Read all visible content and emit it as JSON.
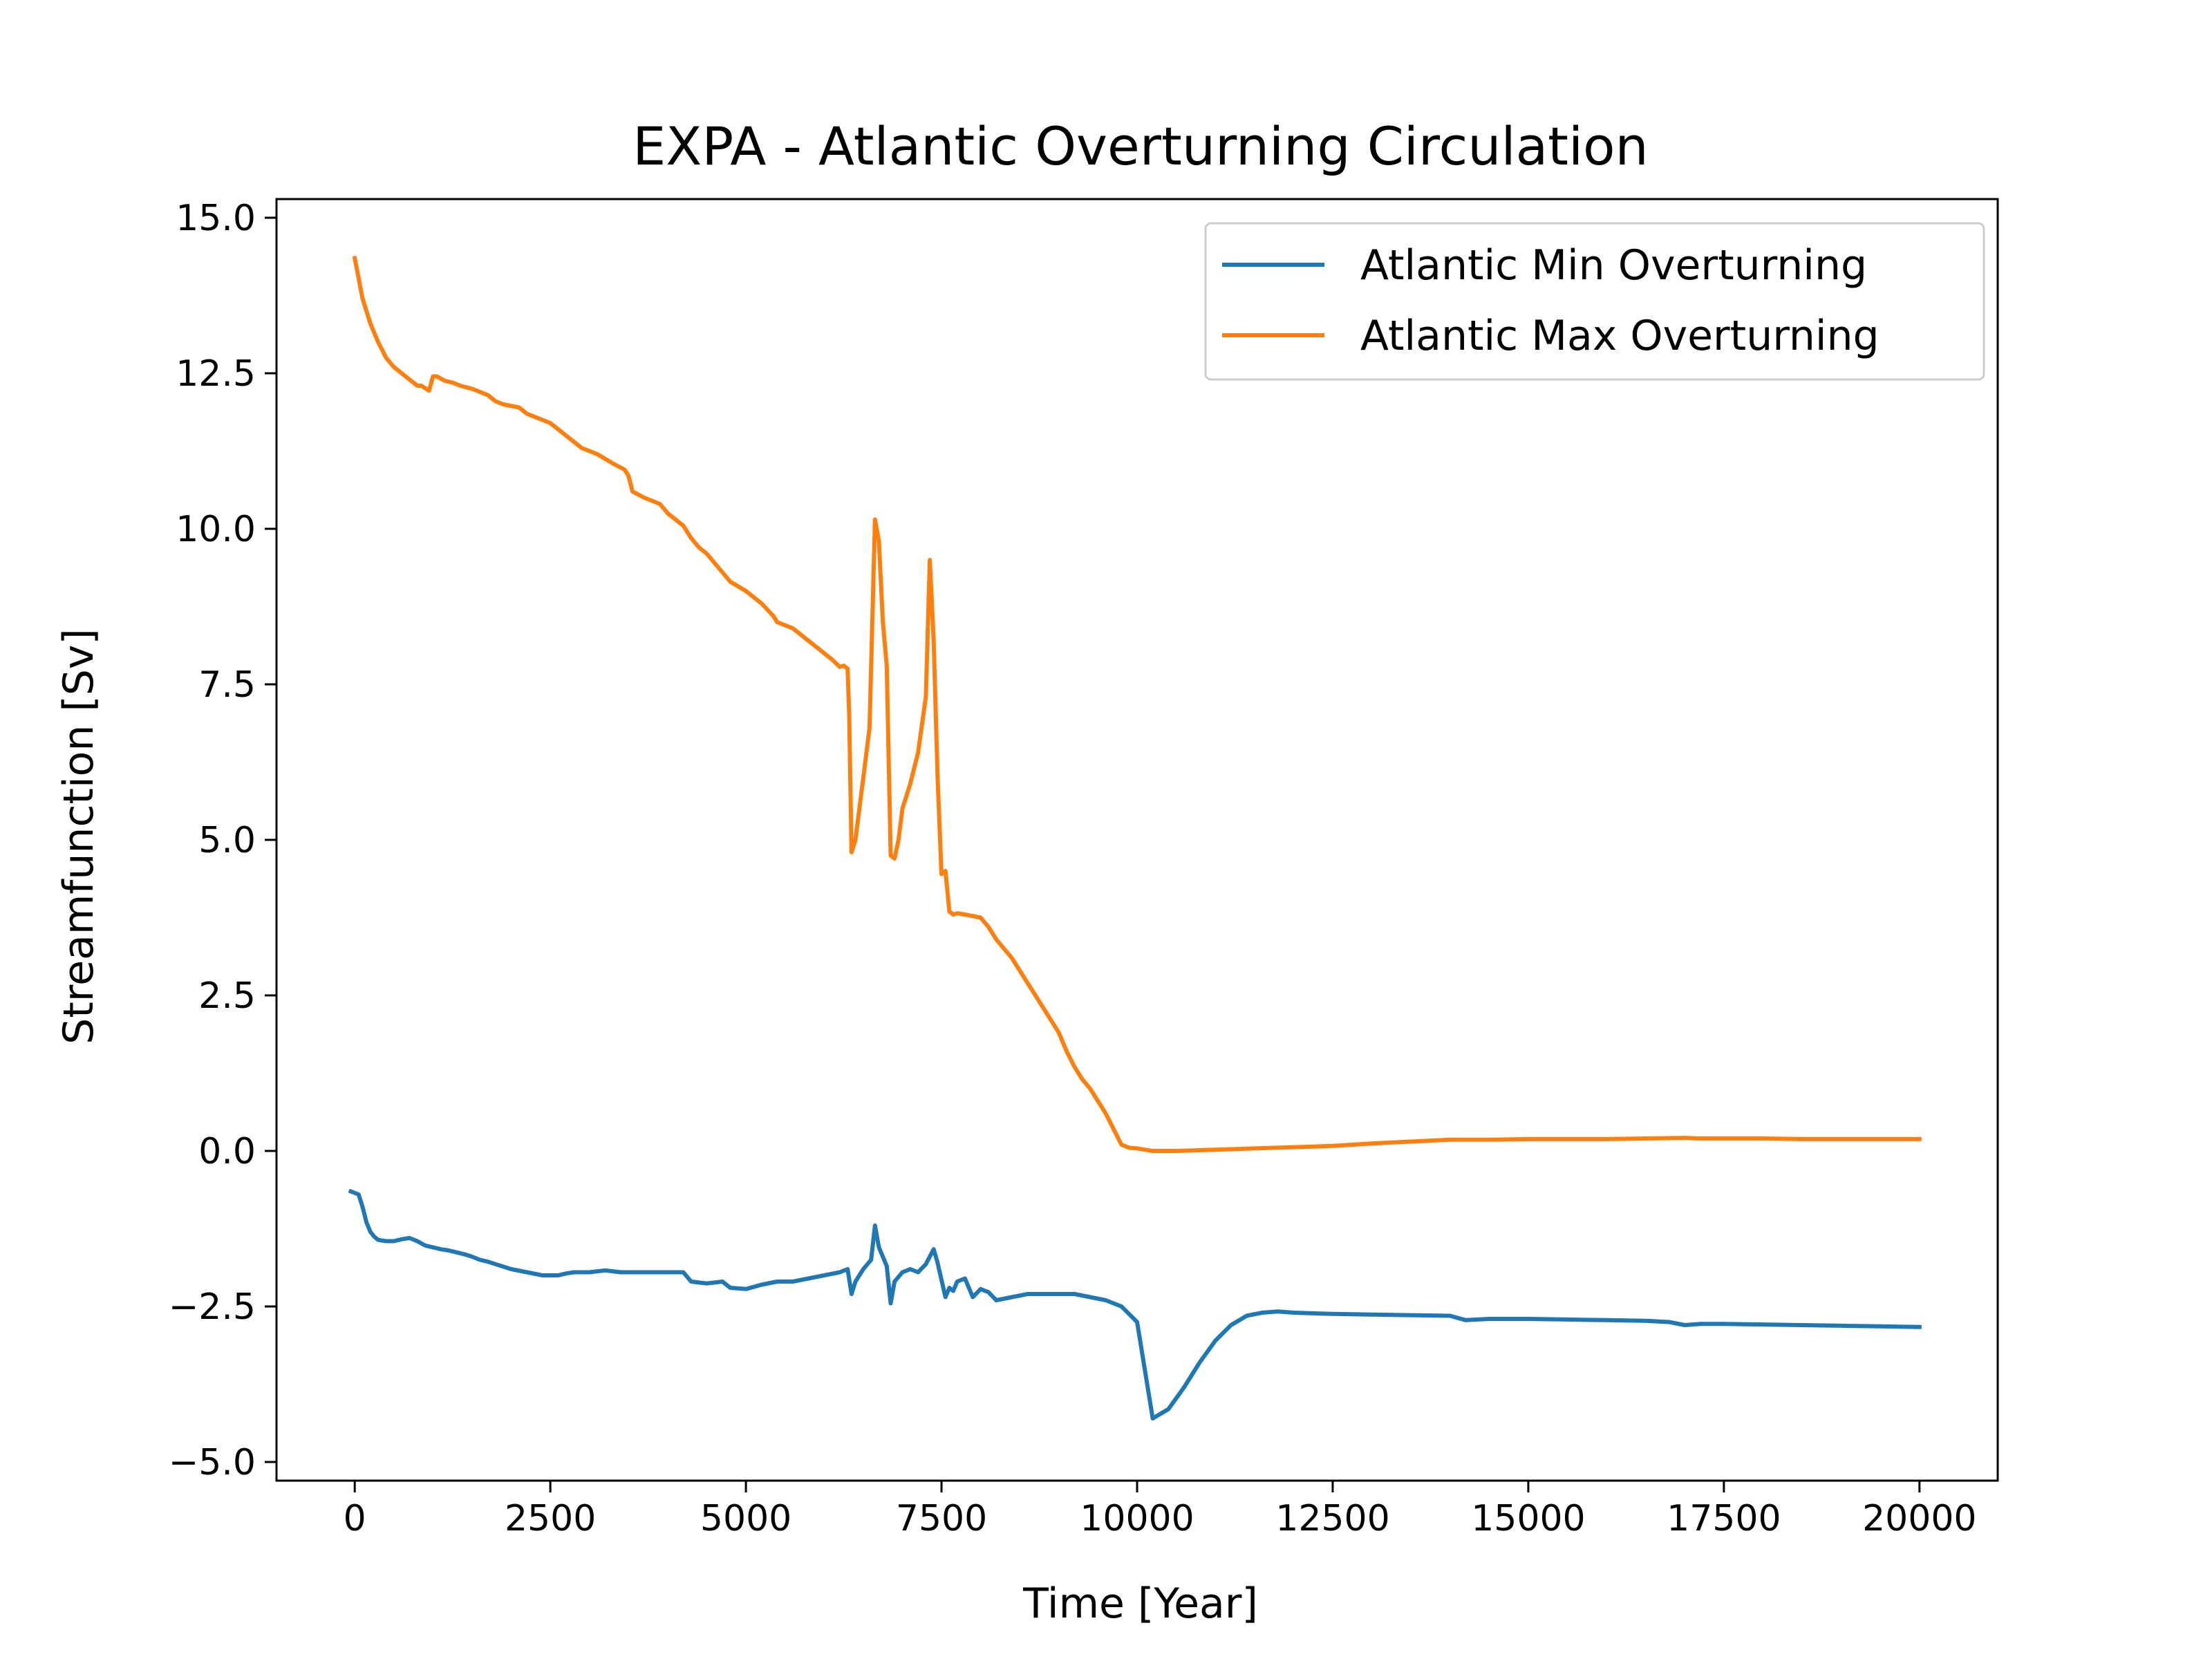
{
  "chart_data": {
    "type": "line",
    "title": "EXPA - Atlantic Overturning Circulation",
    "xlabel": "Time [Year]",
    "ylabel": "Streamfunction [Sv]",
    "xlim": [
      -1000,
      21000
    ],
    "ylim": [
      -5.3,
      15.3
    ],
    "xticks": [
      0,
      2500,
      5000,
      7500,
      10000,
      12500,
      15000,
      17500,
      20000
    ],
    "xtick_labels": [
      "0",
      "2500",
      "5000",
      "7500",
      "10000",
      "12500",
      "15000",
      "17500",
      "20000"
    ],
    "yticks": [
      -5.0,
      -2.5,
      0.0,
      2.5,
      5.0,
      7.5,
      10.0,
      12.5,
      15.0
    ],
    "ytick_labels": [
      "−5.0",
      "−2.5",
      "0.0",
      "2.5",
      "5.0",
      "7.5",
      "10.0",
      "12.5",
      "15.0"
    ],
    "grid": false,
    "legend_position": "top-right",
    "series": [
      {
        "name": "Atlantic Min Overturning",
        "color": "#1f77b4",
        "x": [
          -50,
          50,
          100,
          150,
          200,
          250,
          300,
          400,
          500,
          600,
          700,
          800,
          900,
          1000,
          1100,
          1200,
          1300,
          1400,
          1500,
          1600,
          1700,
          1800,
          2000,
          2200,
          2400,
          2600,
          2700,
          2800,
          3000,
          3200,
          3400,
          3600,
          3800,
          4000,
          4200,
          4300,
          4500,
          4700,
          4800,
          5000,
          5200,
          5400,
          5600,
          5800,
          6000,
          6200,
          6300,
          6350,
          6400,
          6500,
          6600,
          6650,
          6700,
          6800,
          6850,
          6900,
          7000,
          7100,
          7200,
          7300,
          7400,
          7450,
          7550,
          7600,
          7650,
          7700,
          7800,
          7900,
          8000,
          8100,
          8200,
          8400,
          8600,
          8800,
          9000,
          9200,
          9400,
          9600,
          9800,
          10000,
          10200,
          10400,
          10600,
          10800,
          11000,
          11200,
          11400,
          11600,
          11800,
          12000,
          12500,
          13000,
          13500,
          14000,
          14200,
          14500,
          15000,
          15500,
          16000,
          16500,
          16800,
          17000,
          17200,
          17500,
          18000,
          18500,
          19000,
          19500,
          20000
        ],
        "y": [
          -0.65,
          -0.7,
          -0.9,
          -1.15,
          -1.3,
          -1.38,
          -1.43,
          -1.45,
          -1.45,
          -1.42,
          -1.4,
          -1.45,
          -1.52,
          -1.55,
          -1.58,
          -1.6,
          -1.63,
          -1.66,
          -1.7,
          -1.75,
          -1.78,
          -1.82,
          -1.9,
          -1.95,
          -2.0,
          -2.0,
          -1.97,
          -1.95,
          -1.95,
          -1.92,
          -1.95,
          -1.95,
          -1.95,
          -1.95,
          -1.95,
          -2.1,
          -2.13,
          -2.1,
          -2.2,
          -2.22,
          -2.15,
          -2.1,
          -2.1,
          -2.05,
          -2.0,
          -1.95,
          -1.9,
          -2.3,
          -2.1,
          -1.9,
          -1.75,
          -1.2,
          -1.55,
          -1.85,
          -2.45,
          -2.1,
          -1.95,
          -1.9,
          -1.95,
          -1.82,
          -1.58,
          -1.8,
          -2.35,
          -2.2,
          -2.25,
          -2.1,
          -2.05,
          -2.35,
          -2.22,
          -2.27,
          -2.4,
          -2.35,
          -2.3,
          -2.3,
          -2.3,
          -2.3,
          -2.35,
          -2.4,
          -2.5,
          -2.75,
          -4.3,
          -4.15,
          -3.8,
          -3.4,
          -3.05,
          -2.8,
          -2.65,
          -2.6,
          -2.58,
          -2.6,
          -2.62,
          -2.63,
          -2.64,
          -2.65,
          -2.72,
          -2.7,
          -2.7,
          -2.71,
          -2.72,
          -2.73,
          -2.75,
          -2.8,
          -2.78,
          -2.78,
          -2.79,
          -2.8,
          -2.81,
          -2.82,
          -2.83
        ],
        "linewidth": 6
      },
      {
        "name": "Atlantic Max Overturning",
        "color": "#ff7f0e",
        "x": [
          0,
          100,
          200,
          300,
          400,
          500,
          600,
          700,
          800,
          850,
          950,
          1000,
          1050,
          1150,
          1250,
          1350,
          1500,
          1700,
          1800,
          1900,
          2100,
          2200,
          2500,
          2700,
          2800,
          2900,
          3100,
          3300,
          3450,
          3500,
          3550,
          3700,
          3900,
          4000,
          4200,
          4300,
          4400,
          4500,
          4700,
          4800,
          5000,
          5200,
          5350,
          5400,
          5600,
          5800,
          5900,
          6000,
          6100,
          6200,
          6250,
          6300,
          6320,
          6350,
          6400,
          6500,
          6580,
          6650,
          6700,
          6750,
          6800,
          6850,
          6900,
          6950,
          7000,
          7100,
          7200,
          7300,
          7350,
          7400,
          7450,
          7500,
          7550,
          7600,
          7650,
          7700,
          7800,
          8000,
          8100,
          8200,
          8300,
          8400,
          8500,
          8600,
          8700,
          8800,
          9000,
          9100,
          9200,
          9300,
          9400,
          9500,
          9600,
          9700,
          9800,
          9900,
          10000,
          10200,
          10500,
          11000,
          11500,
          12000,
          12500,
          13000,
          13500,
          14000,
          14500,
          15000,
          15500,
          16000,
          16500,
          17000,
          17200,
          17500,
          18000,
          18500,
          19000,
          19500,
          20000
        ],
        "y": [
          14.35,
          13.7,
          13.3,
          13.0,
          12.75,
          12.6,
          12.5,
          12.4,
          12.3,
          12.3,
          12.22,
          12.45,
          12.45,
          12.38,
          12.35,
          12.3,
          12.25,
          12.15,
          12.05,
          12.0,
          11.95,
          11.85,
          11.7,
          11.5,
          11.4,
          11.3,
          11.2,
          11.05,
          10.95,
          10.85,
          10.6,
          10.5,
          10.4,
          10.25,
          10.05,
          9.85,
          9.7,
          9.6,
          9.3,
          9.15,
          9.0,
          8.8,
          8.6,
          8.5,
          8.4,
          8.2,
          8.1,
          8.0,
          7.9,
          7.78,
          7.8,
          7.75,
          7.0,
          4.8,
          5.0,
          6.0,
          6.8,
          10.15,
          9.8,
          8.5,
          7.8,
          4.75,
          4.7,
          5.0,
          5.5,
          5.9,
          6.4,
          7.3,
          9.5,
          8.2,
          6.0,
          4.45,
          4.5,
          3.85,
          3.8,
          3.82,
          3.8,
          3.75,
          3.6,
          3.4,
          3.25,
          3.1,
          2.9,
          2.7,
          2.5,
          2.3,
          1.9,
          1.6,
          1.35,
          1.15,
          1.0,
          0.8,
          0.6,
          0.35,
          0.1,
          0.05,
          0.04,
          0.0,
          0.0,
          0.02,
          0.04,
          0.06,
          0.08,
          0.12,
          0.15,
          0.18,
          0.18,
          0.19,
          0.19,
          0.19,
          0.2,
          0.21,
          0.2,
          0.2,
          0.2,
          0.19,
          0.19,
          0.19,
          0.19
        ],
        "linewidth": 6
      }
    ]
  }
}
